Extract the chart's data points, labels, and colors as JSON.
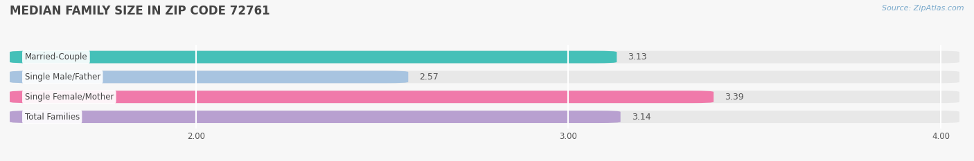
{
  "title": "MEDIAN FAMILY SIZE IN ZIP CODE 72761",
  "source": "Source: ZipAtlas.com",
  "categories": [
    "Married-Couple",
    "Single Male/Father",
    "Single Female/Mother",
    "Total Families"
  ],
  "values": [
    3.13,
    2.57,
    3.39,
    3.14
  ],
  "bar_colors": [
    "#45c0b8",
    "#a8c4e0",
    "#f07aaa",
    "#b8a0d0"
  ],
  "bar_bg_color": "#e8e8e8",
  "xlim_min": 1.5,
  "xlim_max": 4.05,
  "xticks": [
    2.0,
    3.0,
    4.0
  ],
  "xtick_labels": [
    "2.00",
    "3.00",
    "4.00"
  ],
  "bar_height": 0.62,
  "label_fontsize": 8.5,
  "value_fontsize": 9,
  "title_fontsize": 12,
  "source_fontsize": 8,
  "background_color": "#f7f7f7",
  "grid_color": "#ffffff",
  "text_color": "#555555",
  "title_color": "#444444",
  "source_color": "#7aaacc",
  "label_box_color": "#ffffff",
  "label_text_color": "#444444"
}
